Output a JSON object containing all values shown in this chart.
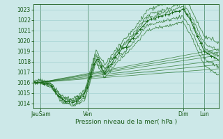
{
  "xlabel": "Pression niveau de la mer( hPa )",
  "ylim": [
    1013.5,
    1023.5
  ],
  "yticks": [
    1014,
    1015,
    1016,
    1017,
    1018,
    1019,
    1020,
    1021,
    1022,
    1023
  ],
  "xlim": [
    0,
    130
  ],
  "xtick_positions": [
    5,
    38,
    105,
    120
  ],
  "xtick_labels": [
    "JeuSam",
    "Ven",
    "Dim",
    "Lun"
  ],
  "vline_positions": [
    5,
    38,
    105,
    120
  ],
  "bg_color": "#cce8e8",
  "grid_color": "#99cccc",
  "line_color": "#1a6b1a",
  "marker": "+",
  "marker_size": 3.5
}
